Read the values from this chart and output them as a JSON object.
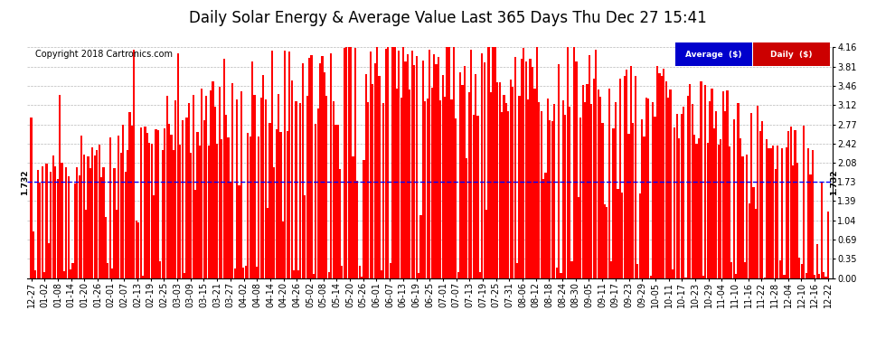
{
  "title": "Daily Solar Energy & Average Value Last 365 Days Thu Dec 27 15:41",
  "copyright": "Copyright 2018 Cartronics.com",
  "average_value": 1.732,
  "average_label": "1.732",
  "ymax": 4.16,
  "ymin": 0.0,
  "yticks": [
    0.0,
    0.35,
    0.69,
    1.04,
    1.39,
    1.73,
    2.08,
    2.42,
    2.77,
    3.12,
    3.46,
    3.81,
    4.16
  ],
  "bar_color": "#ff0000",
  "avg_line_color": "#0000ff",
  "background_color": "#ffffff",
  "grid_color": "#999999",
  "legend_avg_bg": "#0000cc",
  "legend_daily_bg": "#cc0000",
  "legend_text_color": "#ffffff",
  "title_fontsize": 12,
  "copyright_fontsize": 7,
  "tick_fontsize": 7,
  "x_labels": [
    "12-27",
    "01-02",
    "01-08",
    "01-14",
    "01-20",
    "01-26",
    "02-01",
    "02-07",
    "02-13",
    "02-19",
    "02-25",
    "03-03",
    "03-09",
    "03-15",
    "03-21",
    "03-27",
    "04-02",
    "04-08",
    "04-14",
    "04-20",
    "04-26",
    "05-02",
    "05-08",
    "05-14",
    "05-20",
    "05-26",
    "06-01",
    "06-07",
    "06-13",
    "06-19",
    "06-25",
    "07-01",
    "07-07",
    "07-13",
    "07-19",
    "07-25",
    "07-31",
    "08-06",
    "08-12",
    "08-18",
    "08-24",
    "08-30",
    "09-05",
    "09-11",
    "09-17",
    "09-23",
    "09-29",
    "10-05",
    "10-11",
    "10-17",
    "10-23",
    "10-29",
    "11-04",
    "11-10",
    "11-16",
    "11-22",
    "11-28",
    "12-04",
    "12-10",
    "12-16",
    "12-22"
  ]
}
